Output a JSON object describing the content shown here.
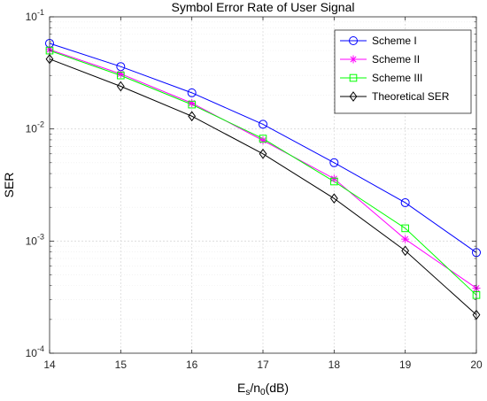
{
  "chart_data": {
    "type": "line",
    "title": "Symbol Error Rate of User Signal",
    "xlabel": {
      "base": "E",
      "sub1": "s",
      "mid": "/n",
      "sub2": "0",
      "tail": "(dB)"
    },
    "ylabel": "SER",
    "x": [
      14,
      15,
      16,
      17,
      18,
      19,
      20
    ],
    "xlim": [
      14,
      20
    ],
    "ylim": [
      0.0001,
      0.1
    ],
    "yscale": "log",
    "grid": true,
    "legend_position": "top-right",
    "x_tick_labels": [
      "14",
      "15",
      "16",
      "17",
      "18",
      "19",
      "20"
    ],
    "y_tick_labels": [
      {
        "base": "10",
        "exp": "-4"
      },
      {
        "base": "10",
        "exp": "-3"
      },
      {
        "base": "10",
        "exp": "-2"
      },
      {
        "base": "10",
        "exp": "-1"
      }
    ],
    "series": [
      {
        "name": "Scheme I",
        "color": "#0000ff",
        "marker": "circle",
        "values": [
          0.058,
          0.036,
          0.021,
          0.011,
          0.005,
          0.0022,
          0.00079
        ]
      },
      {
        "name": "Scheme II",
        "color": "#ff00ff",
        "marker": "star",
        "values": [
          0.051,
          0.031,
          0.017,
          0.0079,
          0.0036,
          0.00104,
          0.00038
        ]
      },
      {
        "name": "Scheme III",
        "color": "#00ff00",
        "marker": "square",
        "values": [
          0.05,
          0.03,
          0.0165,
          0.0082,
          0.0034,
          0.0013,
          0.00033
        ]
      },
      {
        "name": "Theoretical SER",
        "color": "#000000",
        "marker": "diamond",
        "values": [
          0.042,
          0.024,
          0.013,
          0.006,
          0.0024,
          0.00082,
          0.00022
        ]
      }
    ]
  }
}
